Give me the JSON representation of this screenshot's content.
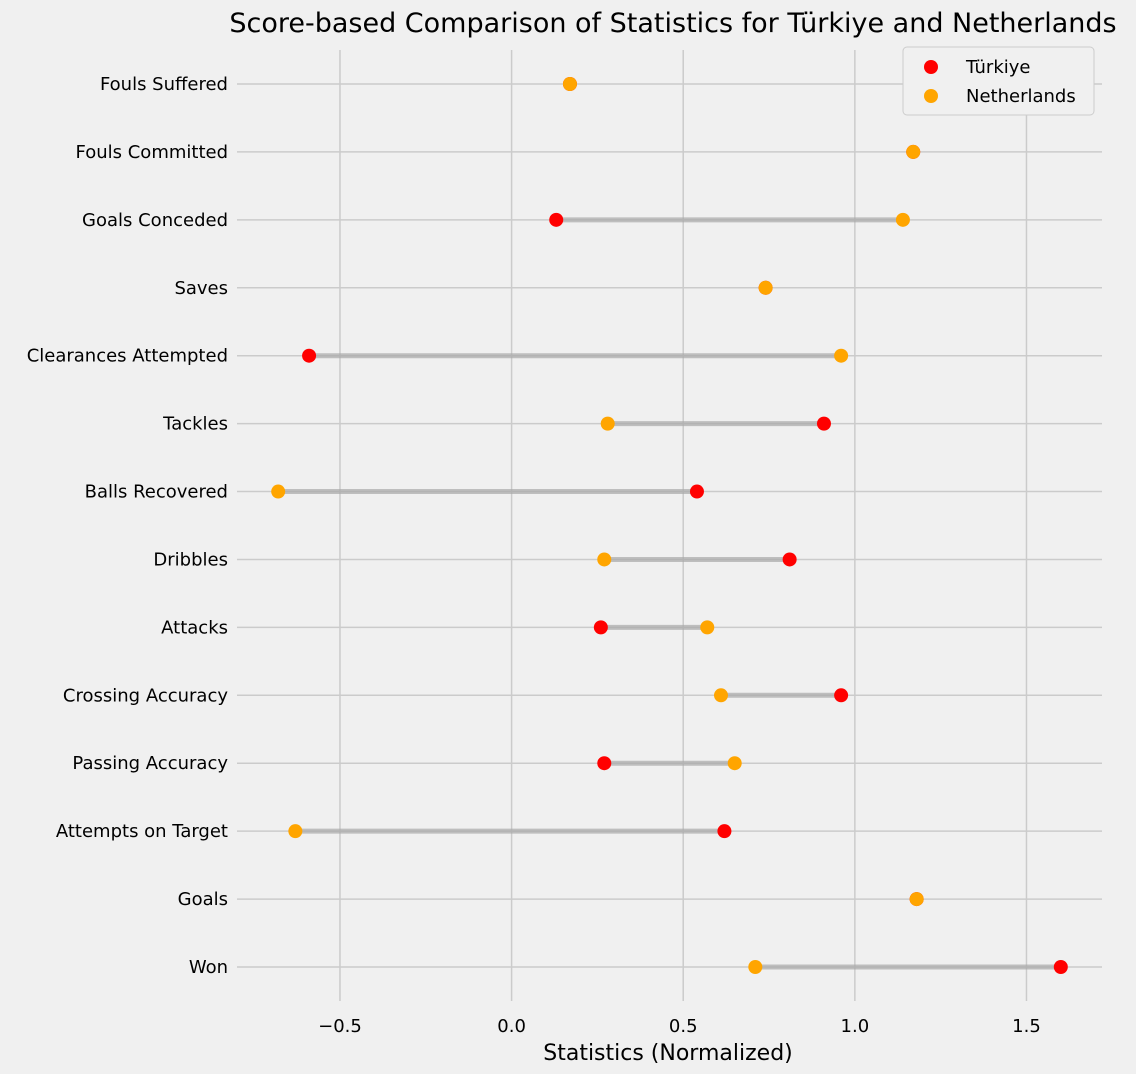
{
  "chart_data": {
    "type": "dumbbell",
    "title": "Score-based Comparison of Statistics for Türkiye and Netherlands",
    "xlabel": "Statistics (Normalized)",
    "ylabel": "",
    "xlim": [
      -0.8,
      1.72
    ],
    "xticks": [
      -0.5,
      0.0,
      0.5,
      1.0,
      1.5
    ],
    "xtick_labels": [
      "−0.5",
      "0.0",
      "0.5",
      "1.0",
      "1.5"
    ],
    "grid": true,
    "legend_position": "top-right",
    "categories": [
      "Won",
      "Goals",
      "Attempts on Target",
      "Passing Accuracy",
      "Crossing Accuracy",
      "Attacks",
      "Dribbles",
      "Balls Recovered",
      "Tackles",
      "Clearances Attempted",
      "Saves",
      "Goals Conceded",
      "Fouls Committed",
      "Fouls Suffered"
    ],
    "series": [
      {
        "name": "Türkiye",
        "color": "#ff0000",
        "values": [
          1.6,
          1.18,
          0.62,
          0.27,
          0.96,
          0.26,
          0.81,
          0.54,
          0.91,
          -0.59,
          0.74,
          0.13,
          1.17,
          0.17
        ]
      },
      {
        "name": "Netherlands",
        "color": "#ffa500",
        "values": [
          0.71,
          1.18,
          -0.63,
          0.65,
          0.61,
          0.57,
          0.27,
          -0.68,
          0.28,
          0.96,
          0.74,
          1.14,
          1.17,
          0.17
        ]
      }
    ]
  }
}
